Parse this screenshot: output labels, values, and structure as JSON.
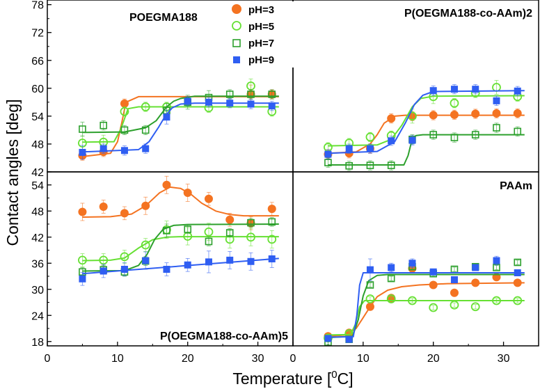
{
  "figure": {
    "ylabel": "Contact angles [deg]",
    "xlabel_main": "Temperature [",
    "xlabel_sup": "0",
    "xlabel_end": "C]",
    "legend": [
      {
        "label": "pH=3",
        "color": "#f47321",
        "marker": "filled-circle"
      },
      {
        "label": "pH=5",
        "color": "#66e033",
        "marker": "open-circle"
      },
      {
        "label": "pH=7",
        "color": "#2ca02c",
        "marker": "open-square"
      },
      {
        "label": "pH=9",
        "color": "#2f5ef2",
        "marker": "filled-square"
      }
    ]
  },
  "chart_data": [
    {
      "type": "scatter",
      "title": "POEGMA188",
      "xlim": [
        0,
        35
      ],
      "ylim": [
        42,
        79
      ],
      "xticks": [],
      "yticks": [
        42,
        48,
        54,
        60,
        66,
        72,
        78
      ],
      "xtick_labels": [],
      "ytick_labels": [
        "42",
        "48",
        "54",
        "60",
        "66",
        "72",
        "78"
      ],
      "series": [
        {
          "name": "pH=3",
          "x": [
            5,
            8,
            11,
            29,
            32
          ],
          "y": [
            45.5,
            46.3,
            56.7,
            58.7,
            58.7
          ],
          "err": [
            1,
            1,
            1,
            2,
            1
          ],
          "fit_x": [
            5,
            9,
            10,
            10.6,
            11.2,
            13,
            33
          ],
          "fit_y": [
            45.3,
            46,
            48.5,
            52.5,
            57,
            58.2,
            58.2
          ]
        },
        {
          "name": "pH=5",
          "x": [
            5,
            8,
            11,
            14,
            17,
            23,
            29,
            32
          ],
          "y": [
            48.2,
            48.4,
            55,
            56,
            56,
            55.8,
            60.5,
            55
          ],
          "err": [
            1.5,
            1.5,
            1,
            1,
            1,
            1,
            1.5,
            1
          ],
          "fit_x": [
            5,
            9.5,
            10.4,
            10.9,
            11.5,
            13,
            33
          ],
          "fit_y": [
            48.4,
            48.5,
            51,
            53,
            55.6,
            56,
            56
          ]
        },
        {
          "name": "pH=7",
          "x": [
            5,
            8,
            11,
            14,
            17,
            20,
            23,
            26,
            29,
            32
          ],
          "y": [
            51.2,
            52,
            51,
            51,
            55.2,
            57,
            58,
            58.7,
            58.7,
            58.7
          ],
          "err": [
            1.5,
            1,
            1,
            1,
            1.5,
            1.5,
            1.5,
            1,
            1,
            1
          ],
          "fit_x": [
            5,
            11,
            14,
            15.5,
            17,
            18,
            19,
            21,
            33
          ],
          "fit_y": [
            50.5,
            50.6,
            51.5,
            53,
            56,
            57.2,
            57.8,
            58.3,
            58.3
          ]
        },
        {
          "name": "pH=9",
          "x": [
            5,
            8,
            11,
            14,
            17,
            20,
            23,
            26,
            29,
            32
          ],
          "y": [
            46.2,
            47,
            46.6,
            47,
            53.8,
            57.2,
            57,
            56.8,
            56.6,
            56.2
          ],
          "err": [
            1.5,
            1,
            1,
            1,
            1.5,
            1,
            1,
            1,
            1,
            1
          ],
          "fit_x": [
            5,
            13,
            14.5,
            15.8,
            16.8,
            17.8,
            19,
            21,
            33
          ],
          "fit_y": [
            46.3,
            46.8,
            48.5,
            51.5,
            54,
            55.8,
            56.6,
            56.8,
            56.8
          ]
        }
      ]
    },
    {
      "type": "scatter",
      "title": "P(OEGMA188-co-AAm)2",
      "xlim": [
        0,
        35
      ],
      "ylim": [
        42,
        79
      ],
      "xticks": [],
      "yticks": [],
      "xtick_labels": [],
      "ytick_labels": [],
      "series": [
        {
          "name": "pH=3",
          "x": [
            5,
            8,
            11,
            14,
            17,
            20,
            23,
            26,
            29,
            32
          ],
          "y": [
            45.8,
            46,
            47,
            53.5,
            54,
            54.2,
            54.3,
            54.5,
            54.6,
            54.6
          ],
          "err": [
            1,
            1,
            1,
            1,
            1,
            1,
            1,
            1,
            1,
            1
          ],
          "fit_x": [
            5,
            9,
            11,
            12,
            13,
            14.5,
            16,
            33
          ],
          "fit_y": [
            46,
            46.3,
            48,
            50,
            52.5,
            54,
            54.2,
            54.2
          ]
        },
        {
          "name": "pH=5",
          "x": [
            5,
            8,
            11,
            14,
            17,
            20,
            23,
            26,
            29,
            32
          ],
          "y": [
            47.3,
            48.2,
            49.5,
            49.8,
            54,
            58.2,
            56.8,
            59,
            60.2,
            58.2
          ],
          "err": [
            1,
            1,
            1,
            1,
            1.5,
            1.5,
            1,
            1,
            1.5,
            1
          ],
          "fit_x": [
            5,
            12,
            14,
            15.5,
            17,
            18.2,
            20,
            33
          ],
          "fit_y": [
            47.6,
            47.8,
            49,
            52,
            56,
            57.8,
            58.3,
            58.4
          ]
        },
        {
          "name": "pH=7",
          "x": [
            5,
            8,
            11,
            14,
            17,
            20,
            23,
            26,
            29,
            32
          ],
          "y": [
            44,
            43.3,
            43.4,
            43.4,
            49,
            50,
            49.4,
            50,
            51.5,
            50.7
          ],
          "err": [
            1,
            1,
            1,
            1,
            1,
            1,
            1,
            1,
            1,
            1
          ],
          "fit_x": [
            5,
            15.8,
            16.4,
            16.9,
            17.5,
            18.5,
            33
          ],
          "fit_y": [
            43.5,
            43.5,
            45.5,
            48.5,
            49.8,
            50,
            50
          ]
        },
        {
          "name": "pH=9",
          "x": [
            5,
            8,
            11,
            14,
            17,
            20,
            23,
            26,
            29,
            32
          ],
          "y": [
            45.8,
            47,
            47,
            48.7,
            48.8,
            59.5,
            59.8,
            59.8,
            57.3,
            59.4
          ],
          "err": [
            1,
            1,
            1,
            1,
            1,
            1,
            1,
            1,
            1,
            1
          ],
          "fit_x": [
            5,
            12,
            14.5,
            16,
            17.3,
            18.5,
            20,
            33
          ],
          "fit_y": [
            46,
            46.4,
            48.5,
            52.5,
            56.5,
            58.5,
            59.3,
            59.5
          ]
        }
      ]
    },
    {
      "type": "scatter",
      "title": "P(OEGMA188-co-AAm)5",
      "xlim": [
        0,
        35
      ],
      "ylim": [
        17,
        57
      ],
      "xticks": [
        0,
        10,
        20,
        30
      ],
      "yticks": [
        18,
        24,
        30,
        36,
        42,
        48,
        54
      ],
      "xtick_labels": [
        "0",
        "10",
        "20",
        "30"
      ],
      "ytick_labels": [
        "18",
        "24",
        "30",
        "36",
        "42",
        "48",
        "54"
      ],
      "series": [
        {
          "name": "pH=3",
          "x": [
            5,
            8,
            11,
            14,
            17,
            20,
            23,
            26,
            29,
            32
          ],
          "y": [
            47.8,
            49,
            47.5,
            49.2,
            54,
            52.2,
            50.8,
            46,
            45.2,
            48.5
          ],
          "err": [
            2,
            1.5,
            1.5,
            2,
            2,
            2,
            1.5,
            1.5,
            1.5,
            1.5
          ],
          "fit_x": [
            5,
            9,
            12,
            14,
            16,
            17.5,
            19,
            20.5,
            22,
            24,
            26,
            28,
            33
          ],
          "fit_y": [
            46.6,
            46.7,
            47.3,
            49.2,
            52.2,
            53.5,
            53.2,
            51.8,
            49.8,
            48,
            47.2,
            46.9,
            46.9
          ]
        },
        {
          "name": "pH=5",
          "x": [
            5,
            8,
            11,
            14,
            17,
            20,
            23,
            26,
            29,
            32
          ],
          "y": [
            36.7,
            36.7,
            37.5,
            40.2,
            43.7,
            42.2,
            43.2,
            41.5,
            42,
            41.5
          ],
          "err": [
            1.5,
            1.5,
            1.5,
            1.5,
            2,
            2,
            2,
            2,
            2,
            2
          ],
          "fit_x": [
            5,
            9,
            11,
            13,
            15,
            17,
            19,
            33
          ],
          "fit_y": [
            36.6,
            36.7,
            37.2,
            39.5,
            41.4,
            42,
            42.1,
            42.1
          ]
        },
        {
          "name": "pH=7",
          "x": [
            5,
            8,
            11,
            14,
            17,
            20,
            23,
            26,
            29,
            32
          ],
          "y": [
            34,
            34.5,
            34,
            36.5,
            43.5,
            43.8,
            41,
            43,
            45.3,
            45.5
          ],
          "err": [
            1,
            1,
            1,
            1,
            1.5,
            1,
            1,
            1,
            1,
            1
          ],
          "fit_x": [
            5,
            11,
            13,
            14.2,
            15.3,
            16.5,
            18,
            20,
            33
          ],
          "fit_y": [
            34.2,
            34.3,
            35.5,
            38,
            41.5,
            43.8,
            44.7,
            44.9,
            45
          ]
        },
        {
          "name": "pH=9",
          "x": [
            5,
            8,
            11,
            14,
            17,
            20,
            23,
            26,
            29,
            32
          ],
          "y": [
            32.4,
            34.2,
            34.6,
            36.6,
            34.6,
            35.6,
            36.3,
            36.7,
            36.4,
            37
          ],
          "err": [
            1.5,
            1.5,
            1.5,
            2,
            1.5,
            1.5,
            2.5,
            2,
            2,
            2
          ],
          "fit_x": [
            5,
            33
          ],
          "fit_y": [
            33.6,
            37.1
          ]
        }
      ]
    },
    {
      "type": "scatter",
      "title": "PAAm",
      "xlim": [
        0,
        35
      ],
      "ylim": [
        17,
        57
      ],
      "xticks": [
        0,
        10,
        20,
        30
      ],
      "yticks": [],
      "xtick_labels": [
        "0",
        "10",
        "20",
        "30"
      ],
      "ytick_labels": [],
      "series": [
        {
          "name": "pH=3",
          "x": [
            5,
            8,
            11,
            14,
            17,
            20,
            23,
            26,
            29,
            32
          ],
          "y": [
            19.2,
            20,
            26,
            28,
            34.8,
            31,
            29.2,
            31.5,
            32.8,
            31.5
          ],
          "err": [
            0.5,
            0.5,
            0.5,
            0.5,
            0.5,
            0.5,
            0.5,
            0.5,
            0.5,
            0.5
          ],
          "fit_x": [
            5,
            7.5,
            9,
            10,
            11,
            12,
            13.5,
            15.5,
            18,
            22,
            33
          ],
          "fit_y": [
            19.2,
            19.5,
            21,
            23.5,
            26,
            28.3,
            29.8,
            30.6,
            31,
            31.3,
            31.5
          ]
        },
        {
          "name": "pH=5",
          "x": [
            5,
            8,
            11,
            14,
            17,
            20,
            23,
            26,
            29,
            32
          ],
          "y": [
            18.8,
            19.8,
            27.8,
            27.8,
            27.4,
            25.8,
            26.4,
            26,
            27.4,
            27.4
          ],
          "err": [
            0.5,
            0.5,
            0.5,
            0.5,
            0.5,
            0.5,
            0.5,
            0.5,
            0.5,
            0.5
          ],
          "fit_x": [
            5,
            8.2,
            8.9,
            9.5,
            10.2,
            33
          ],
          "fit_y": [
            19.5,
            19.6,
            22,
            26,
            27.4,
            27.4
          ]
        },
        {
          "name": "pH=7",
          "x": [
            5,
            8,
            11,
            14,
            17,
            20,
            23,
            26,
            29,
            32
          ],
          "y": [
            17.8,
            18.5,
            31,
            32.5,
            35.2,
            33.6,
            34.6,
            35.2,
            35,
            36.2
          ],
          "err": [
            0.5,
            0.5,
            0.5,
            0.5,
            0.5,
            0.5,
            0.5,
            0.5,
            0.5,
            0.5
          ],
          "fit_x": [
            5,
            8.5,
            9.3,
            10,
            10.8,
            12,
            13.5,
            33
          ],
          "fit_y": [
            18.9,
            19.2,
            23,
            28.5,
            32,
            33.2,
            33.4,
            33.4
          ]
        },
        {
          "name": "pH=9",
          "x": [
            5,
            8,
            11,
            14,
            17,
            20,
            23,
            26,
            29,
            32
          ],
          "y": [
            18.7,
            18.5,
            34.5,
            35,
            36,
            34,
            32.2,
            35,
            36.6,
            33.8
          ],
          "err": [
            0.5,
            0.5,
            2.5,
            1,
            1,
            0.5,
            0.5,
            0.5,
            1,
            0.5
          ],
          "fit_x": [
            5,
            8.6,
            9.1,
            9.5,
            10,
            33
          ],
          "fit_y": [
            19,
            19.1,
            24,
            31,
            33.8,
            33.8
          ]
        }
      ]
    }
  ]
}
